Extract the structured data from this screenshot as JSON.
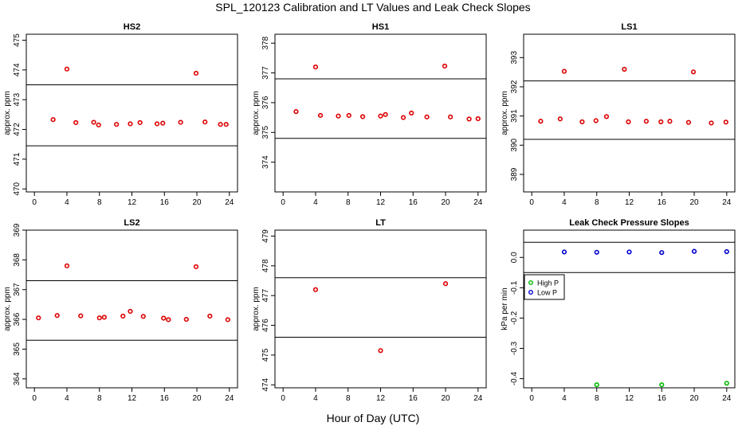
{
  "figure": {
    "title": "SPL_120123  Calibration and LT Values and Leak Check Slopes",
    "xlabel": "Hour of Day (UTC)"
  },
  "chart_data": [
    {
      "type": "scatter",
      "title": "HS2",
      "ylabel": "approx. ppm",
      "xlim": [
        -1,
        25
      ],
      "ylim": [
        469.9,
        475.2
      ],
      "xticks": [
        0,
        4,
        8,
        12,
        16,
        20,
        24
      ],
      "yticks": [
        470,
        471,
        472,
        473,
        474,
        475
      ],
      "reference_lines": [
        473.5,
        471.45
      ],
      "series": [
        {
          "color": "#dd0000",
          "marker": "circle",
          "x": [
            2.3,
            4.0,
            5.1,
            7.3,
            7.9,
            10.1,
            11.8,
            13.0,
            15.1,
            15.8,
            18.0,
            19.9,
            21.0,
            22.9,
            23.6
          ],
          "y": [
            472.33,
            474.03,
            472.23,
            472.24,
            472.15,
            472.17,
            472.19,
            472.23,
            472.19,
            472.21,
            472.24,
            473.89,
            472.25,
            472.17,
            472.17
          ]
        }
      ]
    },
    {
      "type": "scatter",
      "title": "HS1",
      "ylabel": "approx. ppm",
      "xlim": [
        -1,
        25
      ],
      "ylim": [
        373.0,
        378.3
      ],
      "xticks": [
        0,
        4,
        8,
        12,
        16,
        20,
        24
      ],
      "yticks": [
        374,
        375,
        376,
        377,
        378
      ],
      "reference_lines": [
        376.8,
        374.8
      ],
      "series": [
        {
          "color": "#dd0000",
          "marker": "circle",
          "x": [
            1.6,
            4.0,
            4.6,
            6.8,
            8.1,
            9.8,
            12.0,
            12.6,
            14.8,
            15.8,
            17.7,
            19.9,
            20.6,
            22.9,
            24.0
          ],
          "y": [
            375.7,
            377.2,
            375.57,
            375.55,
            375.57,
            375.53,
            375.55,
            375.6,
            375.5,
            375.65,
            375.52,
            377.23,
            375.52,
            375.45,
            375.46
          ]
        }
      ]
    },
    {
      "type": "scatter",
      "title": "LS1",
      "ylabel": "approx. ppm",
      "xlim": [
        -1,
        25
      ],
      "ylim": [
        388.4,
        393.8
      ],
      "xticks": [
        0,
        4,
        8,
        12,
        16,
        20,
        24
      ],
      "yticks": [
        389,
        390,
        391,
        392,
        393
      ],
      "reference_lines": [
        392.2,
        390.2
      ],
      "series": [
        {
          "color": "#dd0000",
          "marker": "circle",
          "x": [
            1.1,
            3.5,
            4.0,
            6.2,
            7.9,
            9.2,
            11.4,
            11.9,
            14.1,
            15.9,
            17.0,
            19.3,
            19.9,
            22.1,
            23.9
          ],
          "y": [
            390.82,
            390.9,
            392.53,
            390.8,
            390.84,
            390.98,
            392.6,
            390.8,
            390.82,
            390.8,
            390.82,
            390.78,
            392.51,
            390.76,
            390.79
          ]
        }
      ]
    },
    {
      "type": "scatter",
      "title": "LS2",
      "ylabel": "approx. ppm",
      "xlim": [
        -1,
        25
      ],
      "ylim": [
        363.7,
        369.0
      ],
      "xticks": [
        0,
        4,
        8,
        12,
        16,
        20,
        24
      ],
      "yticks": [
        364,
        365,
        366,
        367,
        368,
        369
      ],
      "reference_lines": [
        367.3,
        365.3
      ],
      "series": [
        {
          "color": "#dd0000",
          "marker": "circle",
          "x": [
            0.5,
            2.8,
            4.0,
            5.7,
            8.0,
            8.6,
            10.9,
            11.8,
            13.4,
            15.9,
            16.5,
            18.7,
            19.9,
            21.6,
            23.8
          ],
          "y": [
            366.05,
            366.13,
            367.8,
            366.12,
            366.05,
            366.07,
            366.11,
            366.27,
            366.1,
            366.04,
            365.99,
            366.0,
            367.77,
            366.11,
            365.99
          ]
        }
      ]
    },
    {
      "type": "scatter",
      "title": "LT",
      "ylabel": "approx. ppm",
      "xlim": [
        -1,
        25
      ],
      "ylim": [
        473.9,
        479.2
      ],
      "xticks": [
        0,
        4,
        8,
        12,
        16,
        20,
        24
      ],
      "yticks": [
        474,
        475,
        476,
        477,
        478,
        479
      ],
      "reference_lines": [
        477.6,
        475.6
      ],
      "series": [
        {
          "color": "#dd0000",
          "marker": "circle",
          "x": [
            4.0,
            12.0,
            20.0
          ],
          "y": [
            477.2,
            475.15,
            477.4
          ]
        }
      ]
    },
    {
      "type": "scatter",
      "title": "Leak Check Pressure Slopes",
      "ylabel": "kPa per min",
      "xlim": [
        -1,
        25
      ],
      "ylim": [
        -0.43,
        0.09
      ],
      "xticks": [
        0,
        4,
        8,
        12,
        16,
        20,
        24
      ],
      "yticks": [
        0.0,
        -0.1,
        -0.2,
        -0.3,
        -0.4
      ],
      "ytick_labels": [
        "0.0",
        "-0.1",
        "-0.2",
        "-0.3",
        "-0.4"
      ],
      "reference_lines": [
        0.05,
        -0.05
      ],
      "legend": {
        "placement": "left",
        "entries": [
          {
            "label": "High P",
            "color": "#00bb00"
          },
          {
            "label": "Low P",
            "color": "#0000cc"
          }
        ]
      },
      "series": [
        {
          "name": "High P",
          "color": "#00bb00",
          "marker": "circle",
          "x": [
            8,
            16,
            24
          ],
          "y": [
            -0.42,
            -0.42,
            -0.415
          ]
        },
        {
          "name": "Low P",
          "color": "#0000cc",
          "marker": "circle",
          "x": [
            4,
            8,
            12,
            16,
            20,
            24
          ],
          "y": [
            0.018,
            0.017,
            0.018,
            0.016,
            0.02,
            0.019
          ]
        }
      ]
    }
  ]
}
